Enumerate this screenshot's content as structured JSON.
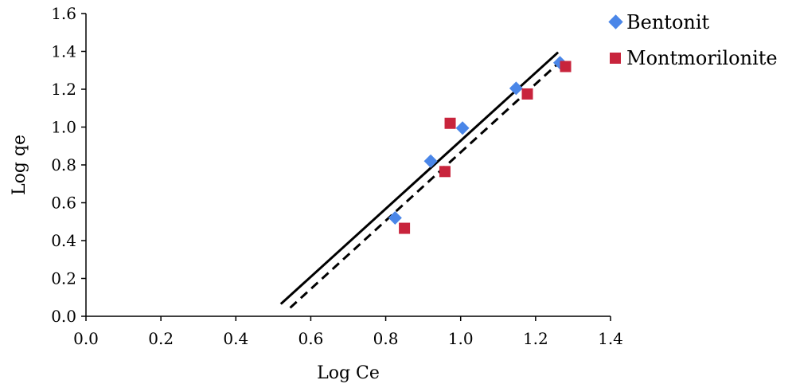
{
  "chart_data": {
    "type": "scatter",
    "xlabel": "Log Ce",
    "ylabel": "Log qe",
    "xlim": [
      0,
      1.4
    ],
    "ylim": [
      0,
      1.6
    ],
    "xticks": [
      "0.0",
      "0.2",
      "0.4",
      "0.6",
      "0.8",
      "1.0",
      "1.2",
      "1.4"
    ],
    "yticks": [
      "0.0",
      "0.2",
      "0.4",
      "0.6",
      "0.8",
      "1.0",
      "1.2",
      "1.4",
      "1.6"
    ],
    "grid": false,
    "legend_position": "top-right",
    "series": [
      {
        "name": "Bentonit",
        "marker": "diamond",
        "color": "#4a86e8",
        "points": [
          [
            0.825,
            0.52
          ],
          [
            0.92,
            0.82
          ],
          [
            1.005,
            0.995
          ],
          [
            1.148,
            1.205
          ],
          [
            1.265,
            1.34
          ]
        ]
      },
      {
        "name": "Montmorilonite",
        "marker": "square",
        "color": "#c8243c",
        "points": [
          [
            0.85,
            0.465
          ],
          [
            0.958,
            0.765
          ],
          [
            0.972,
            1.02
          ],
          [
            1.178,
            1.175
          ],
          [
            1.28,
            1.32
          ]
        ]
      }
    ],
    "trendlines": [
      {
        "style": "solid",
        "color": "#000000",
        "x": [
          0.52,
          1.26
        ],
        "y": [
          0.065,
          1.395
        ]
      },
      {
        "style": "dashed",
        "color": "#000000",
        "x": [
          0.545,
          1.265
        ],
        "y": [
          0.045,
          1.345
        ]
      }
    ]
  }
}
